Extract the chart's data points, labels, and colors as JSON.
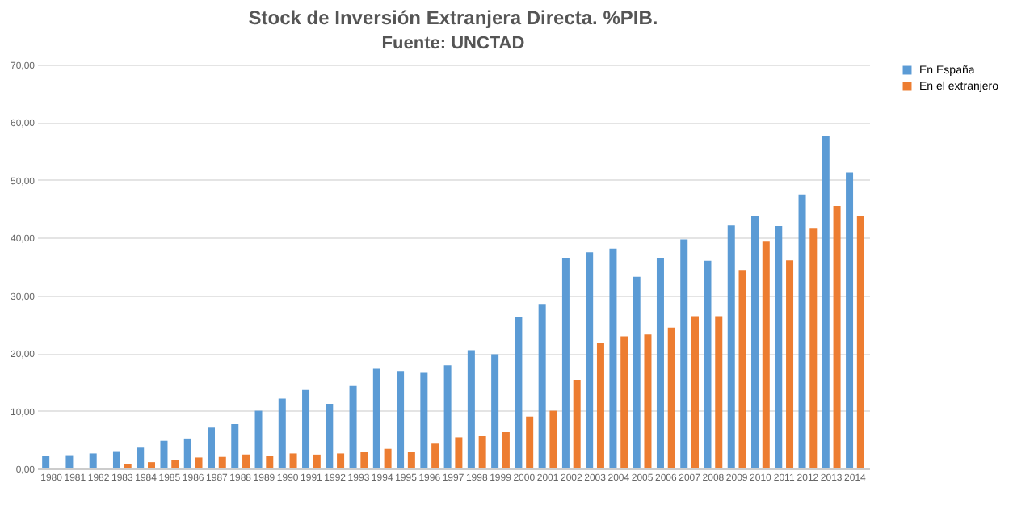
{
  "chart_data": {
    "type": "bar",
    "title": "Stock de Inversión Extranjera Directa. %PIB.",
    "subtitle": "Fuente: UNCTAD",
    "categories": [
      "1980",
      "1981",
      "1982",
      "1983",
      "1984",
      "1985",
      "1986",
      "1987",
      "1988",
      "1989",
      "1990",
      "1991",
      "1992",
      "1993",
      "1994",
      "1995",
      "1996",
      "1997",
      "1998",
      "1999",
      "2000",
      "2001",
      "2002",
      "2003",
      "2004",
      "2005",
      "2006",
      "2007",
      "2008",
      "2009",
      "2010",
      "2011",
      "2012",
      "2013",
      "2014"
    ],
    "series": [
      {
        "name": "En España",
        "color": "#5b9bd5",
        "values": [
          2.1,
          2.3,
          2.6,
          3.0,
          3.6,
          4.8,
          5.2,
          7.1,
          7.7,
          10.0,
          12.1,
          13.6,
          11.2,
          14.3,
          17.3,
          16.9,
          16.6,
          17.9,
          20.5,
          19.8,
          26.3,
          28.4,
          36.5,
          37.5,
          38.1,
          33.2,
          36.5,
          39.7,
          36.0,
          42.1,
          43.8,
          42.0,
          47.5,
          57.6,
          51.3
        ]
      },
      {
        "name": "En el extranjero",
        "color": "#ed7d31",
        "values": [
          null,
          null,
          null,
          0.8,
          1.1,
          1.5,
          1.9,
          2.0,
          2.4,
          2.2,
          2.6,
          2.4,
          2.6,
          2.9,
          3.4,
          2.9,
          4.3,
          5.4,
          5.6,
          6.3,
          9.0,
          10.0,
          15.3,
          21.7,
          22.9,
          23.2,
          24.4,
          26.4,
          26.4,
          34.4,
          39.3,
          36.1,
          41.7,
          45.5,
          43.8
        ]
      }
    ],
    "ylim": [
      0,
      70
    ],
    "yticks": [
      {
        "value": 0,
        "label": "0,00"
      },
      {
        "value": 10,
        "label": "10,00"
      },
      {
        "value": 20,
        "label": "20,00"
      },
      {
        "value": 30,
        "label": "30,00"
      },
      {
        "value": 40,
        "label": "40,00"
      },
      {
        "value": 50,
        "label": "50,00"
      },
      {
        "value": 60,
        "label": "60,00"
      },
      {
        "value": 70,
        "label": "70,00"
      }
    ],
    "grid": "y",
    "legend": "right"
  }
}
